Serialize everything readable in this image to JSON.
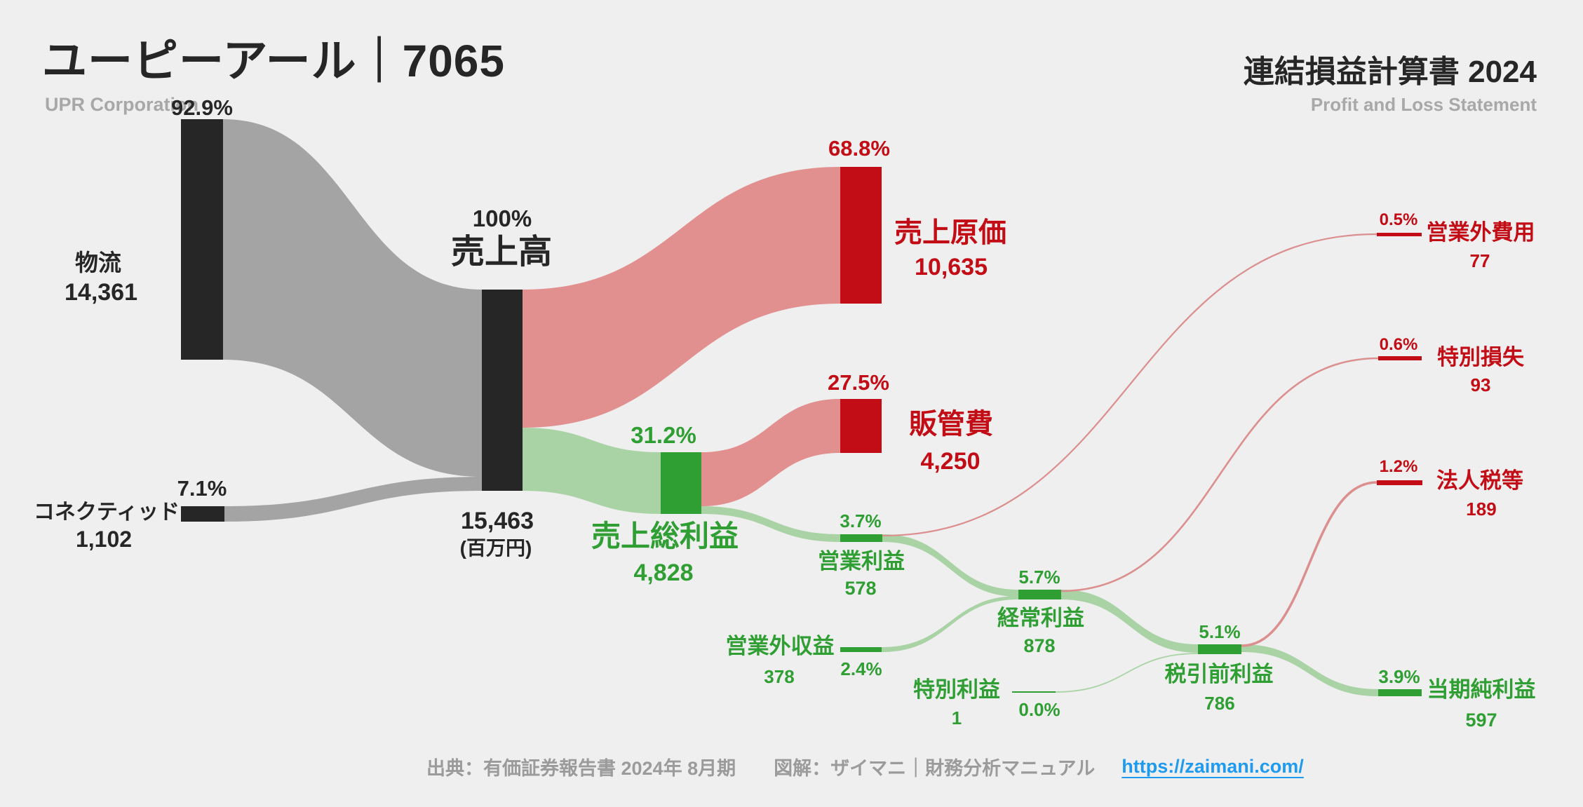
{
  "header": {
    "title_ja": "ユーピーアール｜7065",
    "title_en": "UPR Corporation",
    "right_title": "連結損益計算書 2024",
    "right_subtitle": "Profit and Loss Statement"
  },
  "footer": {
    "source": "出典：有価証券報告書 2024年 8月期　　図解：ザイマニ｜財務分析マニュアル",
    "link": "https://zaimani.com/"
  },
  "chart_data": {
    "type": "sankey",
    "title": "連結損益計算書 2024",
    "unit": "百万円",
    "colors": {
      "bg": "#efefef",
      "dark": "#262626",
      "red": "#c30d16",
      "green": "#2f9e33",
      "flow_gray": "#a4a4a4",
      "flow_pink": "#e2908f",
      "flow_green": "#a9d3a5",
      "red_line": "#dc8f8f",
      "green_line": "#a9d3a5",
      "link_blue": "#1e9bef",
      "muted": "#a8a8a8"
    },
    "nodes": [
      {
        "id": "butsuryu",
        "label": "物流",
        "value": "14,361",
        "pct": "92.9%"
      },
      {
        "id": "connected",
        "label": "コネクティッド",
        "value": "1,102",
        "pct": "7.1%"
      },
      {
        "id": "uriage",
        "label": "売上高",
        "value": "15,463",
        "pct": "100%",
        "unit": "(百万円)"
      },
      {
        "id": "genka",
        "label": "売上原価",
        "value": "10,635",
        "pct": "68.8%"
      },
      {
        "id": "hankanhi",
        "label": "販管費",
        "value": "4,250",
        "pct": "27.5%"
      },
      {
        "id": "sorieki",
        "label": "売上総利益",
        "value": "4,828",
        "pct": "31.2%"
      },
      {
        "id": "eigyorieki",
        "label": "営業利益",
        "value": "578",
        "pct": "3.7%"
      },
      {
        "id": "eigyogaishueki",
        "label": "営業外収益",
        "value": "378",
        "pct": "2.4%"
      },
      {
        "id": "keijorieki",
        "label": "経常利益",
        "value": "878",
        "pct": "5.7%"
      },
      {
        "id": "tokubetsurieki",
        "label": "特別利益",
        "value": "1",
        "pct": "0.0%"
      },
      {
        "id": "zeibikimae",
        "label": "税引前利益",
        "value": "786",
        "pct": "5.1%"
      },
      {
        "id": "tokijunrieki",
        "label": "当期純利益",
        "value": "597",
        "pct": "3.9%"
      },
      {
        "id": "eigyogaihiyo",
        "label": "営業外費用",
        "value": "77",
        "pct": "0.5%"
      },
      {
        "id": "tokubetsusonshitsu",
        "label": "特別損失",
        "value": "93",
        "pct": "0.6%"
      },
      {
        "id": "hojinzei",
        "label": "法人税等",
        "value": "189",
        "pct": "1.2%"
      }
    ],
    "links": [
      {
        "source": "物流",
        "target": "売上高",
        "value": 14361,
        "pct": "92.9%"
      },
      {
        "source": "コネクティッド",
        "target": "売上高",
        "value": 1102,
        "pct": "7.1%"
      },
      {
        "source": "売上高",
        "target": "売上原価",
        "value": 10635,
        "pct": "68.8%"
      },
      {
        "source": "売上高",
        "target": "売上総利益",
        "value": 4828,
        "pct": "31.2%"
      },
      {
        "source": "売上総利益",
        "target": "販管費",
        "value": 4250,
        "pct": "27.5%"
      },
      {
        "source": "売上総利益",
        "target": "営業利益",
        "value": 578,
        "pct": "3.7%"
      },
      {
        "source": "営業利益",
        "target": "経常利益",
        "value": 578,
        "pct": "3.7%"
      },
      {
        "source": "営業外収益",
        "target": "経常利益",
        "value": 378,
        "pct": "2.4%"
      },
      {
        "source": "営業利益",
        "target": "営業外費用",
        "value": 77,
        "pct": "0.5%"
      },
      {
        "source": "経常利益",
        "target": "税引前利益",
        "value": 786,
        "pct": "5.1%"
      },
      {
        "source": "特別利益",
        "target": "税引前利益",
        "value": 1,
        "pct": "0.0%"
      },
      {
        "source": "経常利益",
        "target": "特別損失",
        "value": 93,
        "pct": "0.6%"
      },
      {
        "source": "税引前利益",
        "target": "当期純利益",
        "value": 597,
        "pct": "3.9%"
      },
      {
        "source": "税引前利益",
        "target": "法人税等",
        "value": 189,
        "pct": "1.2%"
      }
    ]
  }
}
